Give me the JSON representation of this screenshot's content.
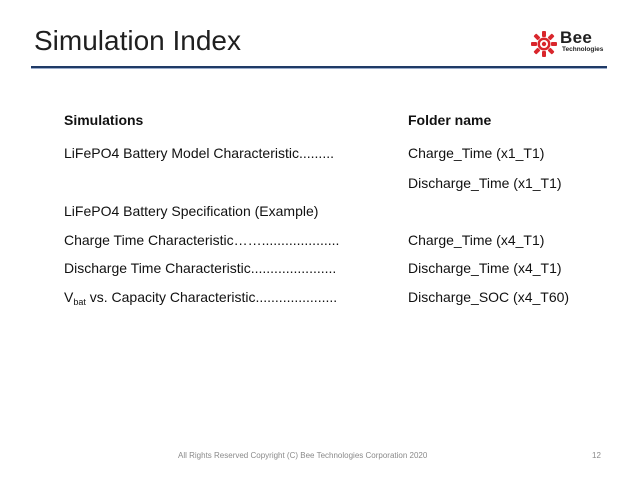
{
  "slide": {
    "title": "Simulation Index",
    "page_number": "12"
  },
  "logo": {
    "name": "Bee",
    "subtitle": "Technologies",
    "icon": "bee-logo-icon",
    "colors": {
      "red": "#d9262c",
      "dark": "#1f1f1f"
    }
  },
  "table": {
    "headers": {
      "simulations": "Simulations",
      "folder": "Folder name"
    },
    "rows": [
      {
        "simulation": "LiFePO4 Battery Model Characteristic.........",
        "folder": "Charge_Time (x1_T1)"
      },
      {
        "simulation": "",
        "folder": "Discharge_Time (x1_T1)"
      },
      {
        "simulation": "LiFePO4 Battery Specification (Example)",
        "folder": ""
      },
      {
        "simulation": "Charge Time Characteristic……....................",
        "folder": "Charge_Time (x4_T1)"
      },
      {
        "simulation": "Discharge Time Characteristic......................",
        "folder": "Discharge_Time (x4_T1)"
      },
      {
        "simulation_prefix": "V",
        "simulation_sub": "bat",
        "simulation_suffix": " vs. Capacity Characteristic.....................",
        "folder": "Discharge_SOC (x4_T60)"
      }
    ]
  },
  "footer": {
    "copyright": "All Rights Reserved Copyright (C) Bee Technologies Corporation 2020"
  },
  "colors": {
    "title_rule": "#1f3a66",
    "footer_text": "#8a8a8a"
  }
}
